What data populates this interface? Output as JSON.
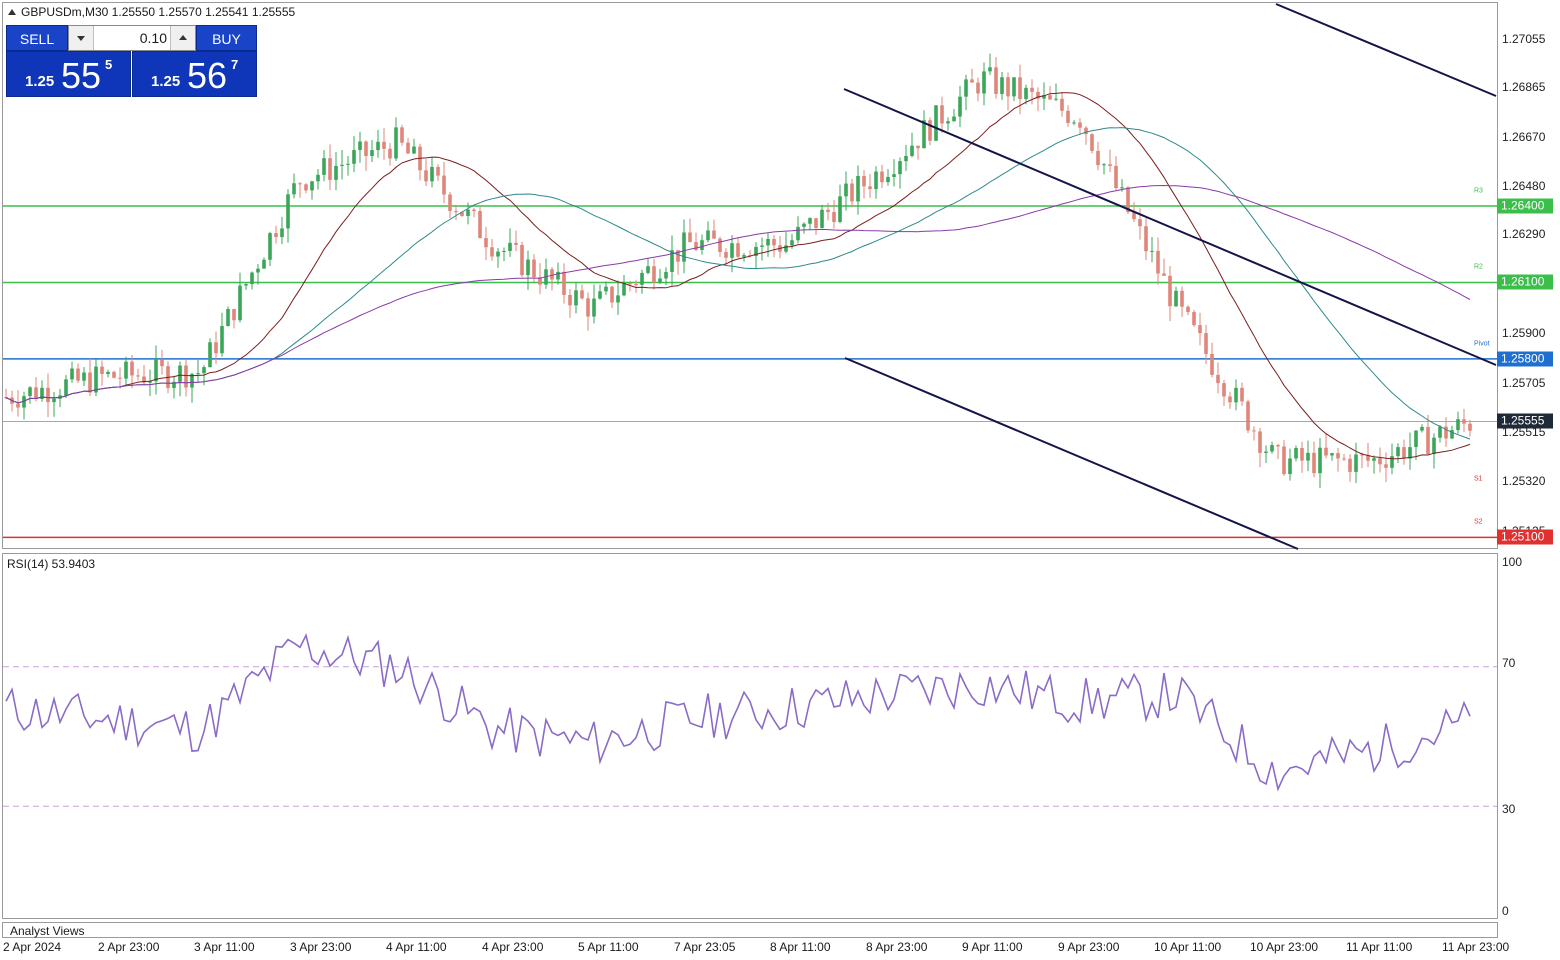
{
  "symbol_header": "GBPUSDm,M30  1.25550 1.25570 1.25541 1.25555",
  "trade_panel": {
    "sell_label": "SELL",
    "buy_label": "BUY",
    "lot_value": "0.10",
    "sell_price": {
      "small": "1.25",
      "big": "55",
      "pip": "5"
    },
    "buy_price": {
      "small": "1.25",
      "big": "56",
      "pip": "7"
    }
  },
  "price_axis": {
    "labels": [
      "1.27055",
      "1.26865",
      "1.26670",
      "1.26480",
      "1.26290",
      "1.25900",
      "1.25705",
      "1.25515",
      "1.25320",
      "1.25125"
    ],
    "range": [
      1.2507,
      1.2721
    ]
  },
  "horizontal_levels": [
    {
      "price": 1.264,
      "label": "1.26400",
      "color": "#3bbf4a",
      "tag": "R3"
    },
    {
      "price": 1.261,
      "label": "1.26100",
      "color": "#3bbf4a",
      "tag": "R2"
    },
    {
      "price": 1.258,
      "label": "1.25800",
      "color": "#1f6fd1",
      "tag": "Pivot"
    },
    {
      "price": 1.251,
      "label": "1.25100",
      "color": "#e03030",
      "tag": "S2"
    }
  ],
  "s1_tag": "S1",
  "current_price_label": "1.25555",
  "rsi": {
    "label": "RSI(14) 53.9403",
    "axis_labels": [
      "100",
      "70",
      "30",
      "0"
    ],
    "levels": [
      70,
      30
    ]
  },
  "time_axis": [
    "2 Apr 2024",
    "2 Apr 23:00",
    "3 Apr 11:00",
    "3 Apr 23:00",
    "4 Apr 11:00",
    "4 Apr 23:00",
    "5 Apr 11:00",
    "7 Apr 23:05",
    "8 Apr 11:00",
    "8 Apr 23:00",
    "9 Apr 11:00",
    "9 Apr 23:00",
    "10 Apr 11:00",
    "10 Apr 23:00",
    "11 Apr 11:00",
    "11 Apr 23:00"
  ],
  "subwindow_label": "Analyst Views",
  "colors": {
    "bull": "#3aa65a",
    "bear": "#e0857a",
    "ma_fast": "#7a1f1f",
    "ma_mid": "#2e8a8a",
    "ma_slow": "#8a3aa8",
    "trendline": "#14144a",
    "rsi": "#8a6cc8"
  },
  "chart_data": {
    "type": "line",
    "title": "GBPUSDm,M30",
    "series": [
      {
        "name": "GBPUSDm",
        "x": [
          "2 Apr 2024",
          "2 Apr 23:00",
          "3 Apr 11:00",
          "3 Apr 23:00",
          "4 Apr 11:00",
          "4 Apr 23:00",
          "5 Apr 11:00",
          "7 Apr 23:05",
          "8 Apr 11:00",
          "8 Apr 23:00",
          "9 Apr 11:00",
          "9 Apr 23:00",
          "10 Apr 11:00",
          "10 Apr 23:00",
          "11 Apr 11:00",
          "11 Apr 23:00"
        ],
        "values": [
          1.2565,
          1.2573,
          1.2575,
          1.265,
          1.2665,
          1.2625,
          1.26,
          1.2625,
          1.2625,
          1.2655,
          1.269,
          1.2675,
          1.26,
          1.254,
          1.254,
          1.2555
        ]
      },
      {
        "name": "RSI(14)",
        "x": [
          "2 Apr 2024",
          "2 Apr 23:00",
          "3 Apr 11:00",
          "3 Apr 23:00",
          "4 Apr 11:00",
          "4 Apr 23:00",
          "5 Apr 11:00",
          "7 Apr 23:05",
          "8 Apr 11:00",
          "8 Apr 23:00",
          "9 Apr 11:00",
          "9 Apr 23:00",
          "10 Apr 11:00",
          "10 Apr 23:00",
          "11 Apr 11:00",
          "11 Apr 23:00"
        ],
        "values": [
          58,
          55,
          52,
          76,
          70,
          52,
          48,
          55,
          58,
          62,
          65,
          60,
          62,
          40,
          46,
          54
        ]
      }
    ],
    "ylim": [
      1.2507,
      1.2721
    ]
  }
}
